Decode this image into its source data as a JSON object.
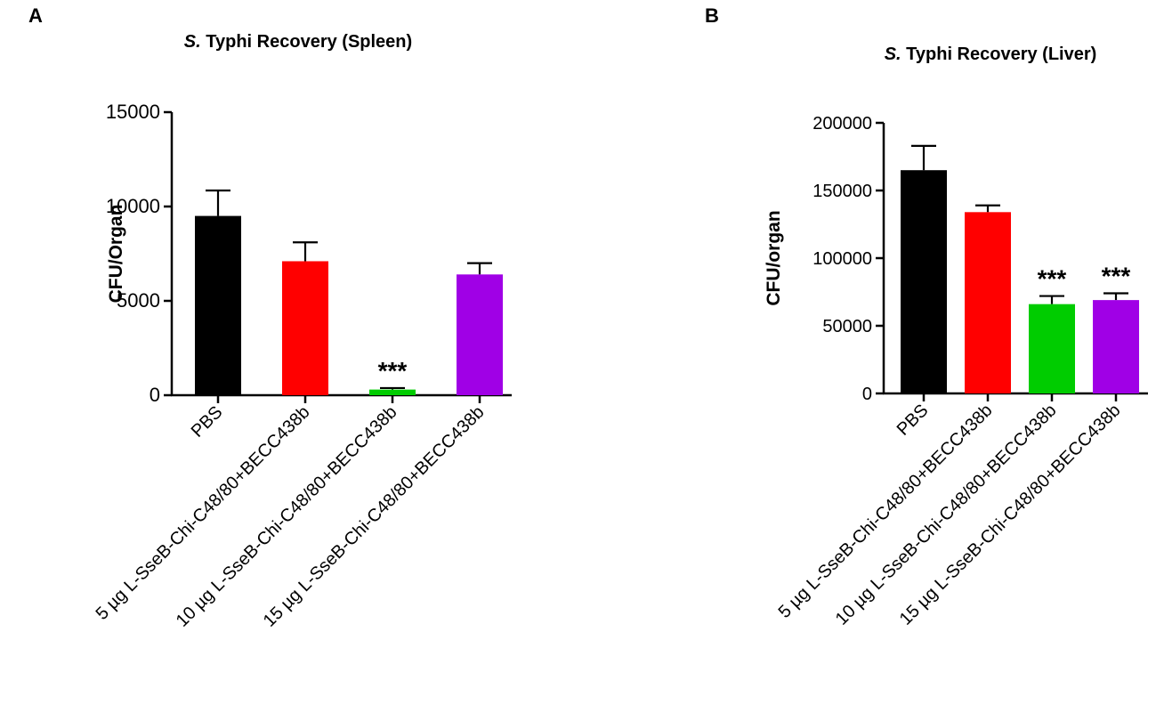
{
  "panel_a_letter": "A",
  "panel_b_letter": "B",
  "chart_data": [
    {
      "type": "bar",
      "panel": "A",
      "title_italic": "S.",
      "title_rest": " Typhi Recovery (Spleen)",
      "ylabel": "CFU/Organ",
      "xlabel": "",
      "ylim": [
        0,
        15000
      ],
      "yticks": [
        0,
        5000,
        10000,
        15000
      ],
      "categories": [
        "PBS",
        "5 µg  L-SseB-Chi-C48/80+BECC438b",
        "10 µg  L-SseB-Chi-C48/80+BECC438b",
        "15 µg  L-SseB-Chi-C48/80+BECC438b"
      ],
      "values": [
        9500,
        7100,
        300,
        6400
      ],
      "errors": [
        1350,
        1000,
        80,
        600
      ],
      "colors": [
        "#000000",
        "#ff0000",
        "#00cc00",
        "#a000e6"
      ],
      "annotations": [
        "",
        "",
        "***",
        ""
      ]
    },
    {
      "type": "bar",
      "panel": "B",
      "title_italic": "S.",
      "title_rest": " Typhi Recovery (Liver)",
      "ylabel": "CFU/organ",
      "xlabel": "",
      "ylim": [
        0,
        200000
      ],
      "yticks": [
        0,
        50000,
        100000,
        150000,
        200000
      ],
      "categories": [
        "PBS",
        "5 µg L-SseB-Chi-C48/80+BECC438b",
        "10 µg L-SseB-Chi-C48/80+BECC438b",
        "15 µg L-SseB-Chi-C48/80+BECC438b"
      ],
      "values": [
        165000,
        134000,
        66000,
        69000
      ],
      "errors": [
        18000,
        5000,
        6000,
        5000
      ],
      "colors": [
        "#000000",
        "#ff0000",
        "#00cc00",
        "#a000e6"
      ],
      "annotations": [
        "",
        "",
        "***",
        "***"
      ]
    }
  ]
}
